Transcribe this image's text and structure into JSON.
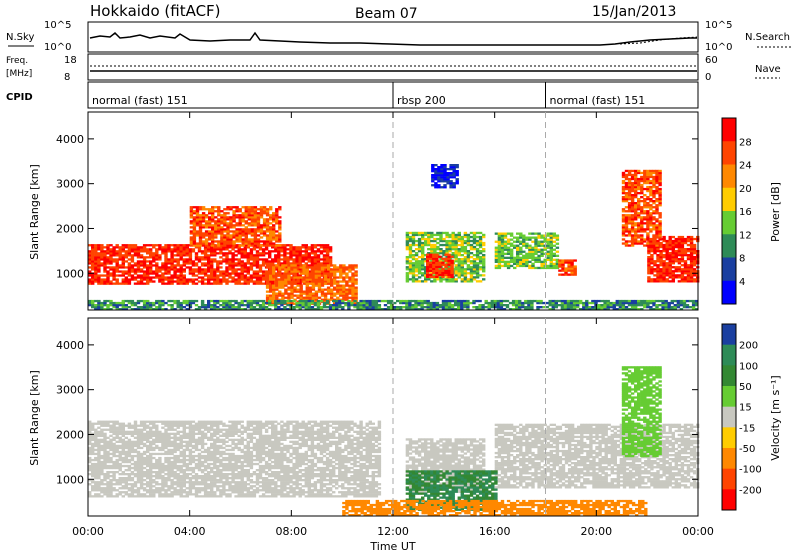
{
  "header": {
    "site_title": "Hokkaido (fitACF)",
    "beam": "Beam 07",
    "date": "15/Jan/2013"
  },
  "top_panels": {
    "nsky_label": "N.Sky",
    "nsky_ticks_left": [
      "10^5",
      "10^0"
    ],
    "nsearch_label": "N.Search",
    "nsearch_ticks_right": [
      "10^5",
      "10^0"
    ],
    "freq_label_line1": "Freq.",
    "freq_label_line2": "[MHz]",
    "freq_ticks": [
      "18",
      "8"
    ],
    "nave_label": "Nave",
    "nave_ticks": [
      "60",
      "0"
    ],
    "cpid_label": "CPID",
    "cpid_segments": [
      {
        "label": "normal (fast) 151",
        "start_hour": 0
      },
      {
        "label": "rbsp 200",
        "start_hour": 12
      },
      {
        "label": "normal (fast) 151",
        "start_hour": 18
      }
    ]
  },
  "panels": {
    "power": {
      "ylabel": "Slant Range [km]",
      "colorbar_label": "Power [dB]"
    },
    "velocity": {
      "ylabel": "Slant Range [km]",
      "colorbar_label": "Velocity [m s⁻¹]"
    }
  },
  "xaxis": {
    "label": "Time UT",
    "ticks": [
      "00:00",
      "04:00",
      "08:00",
      "12:00",
      "16:00",
      "20:00",
      "00:00"
    ]
  },
  "chart_data": [
    {
      "type": "heatmap",
      "name": "power",
      "xlabel": "Time UT",
      "ylabel": "Slant Range [km]",
      "xlim_hours": [
        0,
        24
      ],
      "ylim_km": [
        180,
        4600
      ],
      "yticks": [
        1000,
        2000,
        3000,
        4000
      ],
      "colorbar": {
        "label": "Power [dB]",
        "ticks": [
          4,
          8,
          12,
          16,
          20,
          24,
          28
        ],
        "colors": [
          "#0000ff",
          "#1a3fa0",
          "#2e8b57",
          "#66cc33",
          "#ffcc00",
          "#ff8800",
          "#ff4400",
          "#ff0000"
        ]
      },
      "regions": [
        {
          "t": [
            0.0,
            9.5
          ],
          "r": [
            750,
            1650
          ],
          "level": 28
        },
        {
          "t": [
            4.0,
            7.5
          ],
          "r": [
            1600,
            2500
          ],
          "level": 26
        },
        {
          "t": [
            7.0,
            10.5
          ],
          "r": [
            300,
            1200
          ],
          "level": 24
        },
        {
          "t": [
            12.5,
            15.5
          ],
          "r": [
            800,
            1900
          ],
          "level": 14
        },
        {
          "t": [
            13.3,
            14.3
          ],
          "r": [
            900,
            1400
          ],
          "level": 28
        },
        {
          "t": [
            16.0,
            18.5
          ],
          "r": [
            1100,
            1900
          ],
          "level": 14
        },
        {
          "t": [
            18.5,
            19.2
          ],
          "r": [
            950,
            1300
          ],
          "level": 26
        },
        {
          "t": [
            22.0,
            24.0
          ],
          "r": [
            800,
            1800
          ],
          "level": 28
        },
        {
          "t": [
            21.0,
            22.5
          ],
          "r": [
            1600,
            3300
          ],
          "level": 26
        },
        {
          "t": [
            13.5,
            14.5
          ],
          "r": [
            2900,
            3400
          ],
          "level": 4
        },
        {
          "t": [
            0.0,
            24.0
          ],
          "r": [
            180,
            400
          ],
          "level": 10
        }
      ]
    },
    {
      "type": "heatmap",
      "name": "velocity",
      "xlabel": "Time UT",
      "ylabel": "Slant Range [km]",
      "xlim_hours": [
        0,
        24
      ],
      "ylim_km": [
        180,
        4600
      ],
      "yticks": [
        1000,
        2000,
        3000,
        4000
      ],
      "colorbar": {
        "label": "Velocity [m s⁻¹]",
        "ticks": [
          200,
          100,
          50,
          15,
          -15,
          -50,
          -100,
          -200
        ],
        "colors": [
          "#1a3fa0",
          "#2e8b57",
          "#338833",
          "#66cc33",
          "#c8c8c0",
          "#ffcc00",
          "#ff8800",
          "#ff4400",
          "#ff0000"
        ]
      },
      "regions": [
        {
          "t": [
            0.0,
            11.5
          ],
          "r": [
            600,
            2300
          ],
          "level": 0
        },
        {
          "t": [
            12.5,
            15.5
          ],
          "r": [
            700,
            1900
          ],
          "level": 0
        },
        {
          "t": [
            16.0,
            24.0
          ],
          "r": [
            800,
            2200
          ],
          "level": 0
        },
        {
          "t": [
            12.5,
            16.0
          ],
          "r": [
            300,
            1200
          ],
          "level": 100
        },
        {
          "t": [
            21.0,
            22.5
          ],
          "r": [
            1500,
            3500
          ],
          "level": 30
        },
        {
          "t": [
            10.0,
            22.0
          ],
          "r": [
            180,
            500
          ],
          "level": -60
        }
      ]
    }
  ]
}
